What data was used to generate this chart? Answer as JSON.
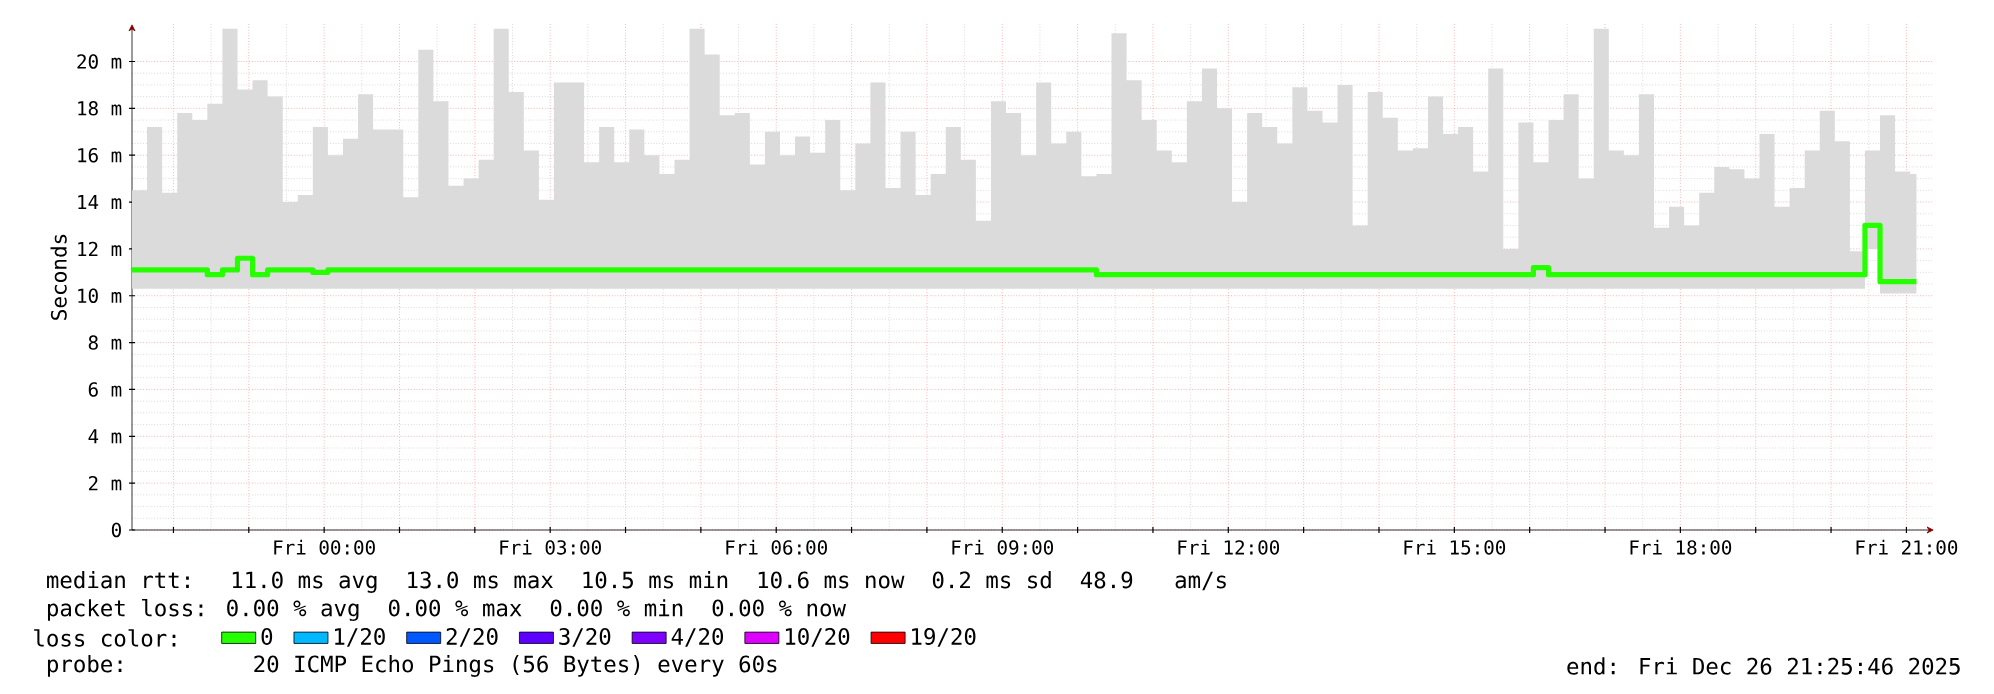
{
  "chart_data": {
    "type": "step",
    "ylabel": "Seconds",
    "x": [
      "2025-12-25T21:27",
      "2025-12-25T21:39",
      "2025-12-25T21:51",
      "2025-12-25T22:03",
      "2025-12-25T22:15",
      "2025-12-25T22:27",
      "2025-12-25T22:39",
      "2025-12-25T22:51",
      "2025-12-25T23:03",
      "2025-12-25T23:15",
      "2025-12-25T23:27",
      "2025-12-25T23:39",
      "2025-12-25T23:51",
      "2025-12-26T00:03",
      "2025-12-26T00:15",
      "2025-12-26T00:27",
      "2025-12-26T00:39",
      "2025-12-26T00:51",
      "2025-12-26T01:03",
      "2025-12-26T01:15",
      "2025-12-26T01:27",
      "2025-12-26T01:39",
      "2025-12-26T01:51",
      "2025-12-26T02:03",
      "2025-12-26T02:15",
      "2025-12-26T02:27",
      "2025-12-26T02:39",
      "2025-12-26T02:51",
      "2025-12-26T03:03",
      "2025-12-26T03:15",
      "2025-12-26T03:27",
      "2025-12-26T03:39",
      "2025-12-26T03:51",
      "2025-12-26T04:03",
      "2025-12-26T04:15",
      "2025-12-26T04:27",
      "2025-12-26T04:39",
      "2025-12-26T04:51",
      "2025-12-26T05:03",
      "2025-12-26T05:15",
      "2025-12-26T05:27",
      "2025-12-26T05:39",
      "2025-12-26T05:51",
      "2025-12-26T06:03",
      "2025-12-26T06:15",
      "2025-12-26T06:27",
      "2025-12-26T06:39",
      "2025-12-26T06:51",
      "2025-12-26T07:03",
      "2025-12-26T07:15",
      "2025-12-26T07:27",
      "2025-12-26T07:39",
      "2025-12-26T07:51",
      "2025-12-26T08:03",
      "2025-12-26T08:15",
      "2025-12-26T08:27",
      "2025-12-26T08:39",
      "2025-12-26T08:51",
      "2025-12-26T09:03",
      "2025-12-26T09:15",
      "2025-12-26T09:27",
      "2025-12-26T09:39",
      "2025-12-26T09:51",
      "2025-12-26T10:03",
      "2025-12-26T10:15",
      "2025-12-26T10:27",
      "2025-12-26T10:39",
      "2025-12-26T10:51",
      "2025-12-26T11:03",
      "2025-12-26T11:15",
      "2025-12-26T11:27",
      "2025-12-26T11:39",
      "2025-12-26T11:51",
      "2025-12-26T12:03",
      "2025-12-26T12:15",
      "2025-12-26T12:27",
      "2025-12-26T12:39",
      "2025-12-26T12:51",
      "2025-12-26T13:03",
      "2025-12-26T13:15",
      "2025-12-26T13:27",
      "2025-12-26T13:39",
      "2025-12-26T13:51",
      "2025-12-26T14:03",
      "2025-12-26T14:15",
      "2025-12-26T14:27",
      "2025-12-26T14:39",
      "2025-12-26T14:51",
      "2025-12-26T15:03",
      "2025-12-26T15:15",
      "2025-12-26T15:27",
      "2025-12-26T15:39",
      "2025-12-26T15:51",
      "2025-12-26T16:03",
      "2025-12-26T16:15",
      "2025-12-26T16:27",
      "2025-12-26T16:39",
      "2025-12-26T16:51",
      "2025-12-26T17:03",
      "2025-12-26T17:15",
      "2025-12-26T17:27",
      "2025-12-26T17:39",
      "2025-12-26T17:51",
      "2025-12-26T18:03",
      "2025-12-26T18:15",
      "2025-12-26T18:27",
      "2025-12-26T18:39",
      "2025-12-26T18:51",
      "2025-12-26T19:03",
      "2025-12-26T19:15",
      "2025-12-26T19:27",
      "2025-12-26T19:39",
      "2025-12-26T19:51",
      "2025-12-26T20:03",
      "2025-12-26T20:15",
      "2025-12-26T20:27",
      "2025-12-26T20:39",
      "2025-12-26T20:51",
      "2025-12-26T21:03",
      "2025-12-26T21:08"
    ],
    "series": [
      {
        "name": "0",
        "color": "#26ff00",
        "values": [
          11.1,
          11.1,
          11.1,
          11.1,
          11.1,
          10.9,
          11.1,
          11.6,
          10.9,
          11.1,
          11.1,
          11.1,
          11.0,
          11.1,
          11.1,
          11.1,
          11.1,
          11.1,
          11.1,
          11.1,
          11.1,
          11.1,
          11.1,
          11.1,
          11.1,
          11.1,
          11.1,
          11.1,
          11.1,
          11.1,
          11.1,
          11.1,
          11.1,
          11.1,
          11.1,
          11.1,
          11.1,
          11.1,
          11.1,
          11.1,
          11.1,
          11.1,
          11.1,
          11.1,
          11.1,
          11.1,
          11.1,
          11.1,
          11.1,
          11.1,
          11.1,
          11.1,
          11.1,
          11.1,
          11.1,
          11.1,
          11.1,
          11.1,
          11.1,
          11.1,
          11.1,
          11.1,
          11.1,
          11.1,
          10.9,
          10.9,
          10.9,
          10.9,
          10.9,
          10.9,
          10.9,
          10.9,
          10.9,
          10.9,
          10.9,
          10.9,
          10.9,
          10.9,
          10.9,
          10.9,
          10.9,
          10.9,
          10.9,
          10.9,
          10.9,
          10.9,
          10.9,
          10.9,
          10.9,
          10.9,
          10.9,
          10.9,
          10.9,
          11.2,
          10.9,
          10.9,
          10.9,
          10.9,
          10.9,
          10.9,
          10.9,
          10.9,
          10.9,
          10.9,
          10.9,
          10.9,
          10.9,
          10.9,
          10.9,
          10.9,
          10.9,
          10.9,
          10.9,
          10.9,
          10.9,
          13.0,
          10.6,
          10.6,
          10.6,
          10.6
        ],
        "lower": [
          10.3,
          10.3,
          10.3,
          10.3,
          10.3,
          10.3,
          10.3,
          10.3,
          10.3,
          10.3,
          10.3,
          10.3,
          10.3,
          10.3,
          10.3,
          10.3,
          10.3,
          10.3,
          10.3,
          10.3,
          10.3,
          10.3,
          10.3,
          10.3,
          10.3,
          10.3,
          10.3,
          10.3,
          10.3,
          10.3,
          10.3,
          10.3,
          10.3,
          10.3,
          10.3,
          10.3,
          10.3,
          10.3,
          10.3,
          10.3,
          10.3,
          10.3,
          10.3,
          10.3,
          10.3,
          10.3,
          10.3,
          10.3,
          10.3,
          10.3,
          10.3,
          10.3,
          10.3,
          10.3,
          10.3,
          10.3,
          10.3,
          10.3,
          10.3,
          10.3,
          10.3,
          10.3,
          10.3,
          10.3,
          10.3,
          10.3,
          10.3,
          10.3,
          10.3,
          10.3,
          10.3,
          10.3,
          10.3,
          10.3,
          10.3,
          10.3,
          10.3,
          10.3,
          10.3,
          10.3,
          10.3,
          10.3,
          10.3,
          10.3,
          10.3,
          10.3,
          10.3,
          10.3,
          10.3,
          10.3,
          10.3,
          10.3,
          10.3,
          10.3,
          10.3,
          10.3,
          10.3,
          10.3,
          10.3,
          10.3,
          10.3,
          10.3,
          10.3,
          10.3,
          10.3,
          10.3,
          10.3,
          10.3,
          10.3,
          10.3,
          10.3,
          10.3,
          10.3,
          10.3,
          10.3,
          12.0,
          10.1,
          10.1,
          10.1,
          10.1
        ],
        "upper": [
          14.5,
          17.2,
          14.4,
          17.8,
          17.5,
          18.2,
          21.4,
          18.8,
          19.2,
          18.5,
          14.0,
          14.3,
          17.2,
          16.0,
          16.7,
          18.6,
          17.1,
          17.1,
          14.2,
          20.5,
          18.3,
          14.7,
          15.0,
          15.8,
          21.4,
          18.7,
          16.2,
          14.1,
          19.1,
          19.1,
          15.7,
          17.2,
          15.7,
          17.1,
          16.0,
          15.2,
          15.8,
          21.4,
          20.3,
          17.7,
          17.8,
          15.6,
          17.0,
          16.0,
          16.8,
          16.1,
          17.5,
          14.5,
          16.5,
          19.1,
          14.6,
          17.0,
          14.3,
          15.2,
          17.2,
          15.8,
          13.2,
          18.3,
          17.8,
          16.0,
          19.1,
          16.5,
          17.0,
          15.1,
          15.2,
          21.2,
          19.2,
          17.5,
          16.2,
          15.7,
          18.3,
          19.7,
          18.0,
          14.0,
          17.8,
          17.2,
          16.5,
          18.9,
          17.9,
          17.4,
          19.0,
          13.0,
          18.7,
          17.6,
          16.2,
          16.3,
          18.5,
          16.9,
          17.2,
          15.3,
          19.7,
          12.0,
          17.4,
          15.7,
          17.5,
          18.6,
          15.0,
          21.4,
          16.2,
          16.0,
          18.6,
          12.9,
          13.8,
          13.0,
          14.4,
          15.5,
          15.4,
          15.0,
          16.9,
          13.8,
          14.6,
          16.2,
          17.9,
          16.6,
          11.9,
          16.2,
          17.7,
          15.3,
          15.2,
          15.2
        ]
      },
      {
        "name": "1/20",
        "color": "#00b8ff",
        "values": [
          null,
          null,
          null,
          null,
          null,
          null,
          null,
          null,
          null,
          null,
          null,
          null,
          null,
          null,
          null,
          null,
          null,
          null,
          null,
          null,
          null,
          null,
          null,
          null,
          null,
          null,
          null,
          null,
          null,
          null,
          null,
          null,
          null,
          null,
          null,
          null,
          null,
          null,
          null,
          null,
          null,
          null,
          null,
          null,
          null,
          null,
          null,
          null,
          null,
          null,
          null,
          null,
          null,
          null,
          null,
          null,
          null,
          null,
          null,
          null,
          null,
          null,
          null,
          null,
          null,
          null,
          null,
          null,
          null,
          null,
          null,
          null,
          null,
          null,
          null,
          null,
          null,
          null,
          null,
          null,
          null,
          null,
          null,
          null,
          null,
          null,
          null,
          null,
          null,
          null,
          null,
          null,
          null,
          null,
          null,
          null,
          null,
          null,
          null,
          null,
          null,
          null,
          null,
          null,
          null,
          null,
          null,
          null,
          null,
          null,
          null,
          null,
          null,
          null,
          null,
          null,
          null,
          null,
          null,
          null
        ]
      },
      {
        "name": "2/20",
        "color": "#0059ff",
        "values": [
          null,
          null,
          null,
          null,
          null,
          null,
          null,
          null,
          null,
          null,
          null,
          null,
          null,
          null,
          null,
          null,
          null,
          null,
          null,
          null,
          null,
          null,
          null,
          null,
          null,
          null,
          null,
          null,
          null,
          null,
          null,
          null,
          null,
          null,
          null,
          null,
          null,
          null,
          null,
          null,
          null,
          null,
          null,
          null,
          null,
          null,
          null,
          null,
          null,
          null,
          null,
          null,
          null,
          null,
          null,
          null,
          null,
          null,
          null,
          null,
          null,
          null,
          null,
          null,
          null,
          null,
          null,
          null,
          null,
          null,
          null,
          null,
          null,
          null,
          null,
          null,
          null,
          null,
          null,
          null,
          null,
          null,
          null,
          null,
          null,
          null,
          null,
          null,
          null,
          null,
          null,
          null,
          null,
          null,
          null,
          null,
          null,
          null,
          null,
          null,
          null,
          null,
          null,
          null,
          null,
          null,
          null,
          null,
          null,
          null,
          null,
          null,
          null,
          null,
          null,
          null,
          null,
          null,
          null,
          null
        ]
      },
      {
        "name": "3/20",
        "color": "#5e00ff",
        "values": [
          null,
          null,
          null,
          null,
          null,
          null,
          null,
          null,
          null,
          null,
          null,
          null,
          null,
          null,
          null,
          null,
          null,
          null,
          null,
          null,
          null,
          null,
          null,
          null,
          null,
          null,
          null,
          null,
          null,
          null,
          null,
          null,
          null,
          null,
          null,
          null,
          null,
          null,
          null,
          null,
          null,
          null,
          null,
          null,
          null,
          null,
          null,
          null,
          null,
          null,
          null,
          null,
          null,
          null,
          null,
          null,
          null,
          null,
          null,
          null,
          null,
          null,
          null,
          null,
          null,
          null,
          null,
          null,
          null,
          null,
          null,
          null,
          null,
          null,
          null,
          null,
          null,
          null,
          null,
          null,
          null,
          null,
          null,
          null,
          null,
          null,
          null,
          null,
          null,
          null,
          null,
          null,
          null,
          null,
          null,
          null,
          null,
          null,
          null,
          null,
          null,
          null,
          null,
          null,
          null,
          null,
          null,
          null,
          null,
          null,
          null,
          null,
          null,
          null,
          null,
          null,
          null,
          null,
          null,
          null
        ]
      },
      {
        "name": "4/20",
        "color": "#7e00ff",
        "values": [
          null,
          null,
          null,
          null,
          null,
          null,
          null,
          null,
          null,
          null,
          null,
          null,
          null,
          null,
          null,
          null,
          null,
          null,
          null,
          null,
          null,
          null,
          null,
          null,
          null,
          null,
          null,
          null,
          null,
          null,
          null,
          null,
          null,
          null,
          null,
          null,
          null,
          null,
          null,
          null,
          null,
          null,
          null,
          null,
          null,
          null,
          null,
          null,
          null,
          null,
          null,
          null,
          null,
          null,
          null,
          null,
          null,
          null,
          null,
          null,
          null,
          null,
          null,
          null,
          null,
          null,
          null,
          null,
          null,
          null,
          null,
          null,
          null,
          null,
          null,
          null,
          null,
          null,
          null,
          null,
          null,
          null,
          null,
          null,
          null,
          null,
          null,
          null,
          null,
          null,
          null,
          null,
          null,
          null,
          null,
          null,
          null,
          null,
          null,
          null,
          null,
          null,
          null,
          null,
          null,
          null,
          null,
          null,
          null,
          null,
          null,
          null,
          null,
          null,
          null,
          null,
          null,
          null,
          null,
          null
        ]
      },
      {
        "name": "10/20",
        "color": "#dd00ff",
        "values": [
          null,
          null,
          null,
          null,
          null,
          null,
          null,
          null,
          null,
          null,
          null,
          null,
          null,
          null,
          null,
          null,
          null,
          null,
          null,
          null,
          null,
          null,
          null,
          null,
          null,
          null,
          null,
          null,
          null,
          null,
          null,
          null,
          null,
          null,
          null,
          null,
          null,
          null,
          null,
          null,
          null,
          null,
          null,
          null,
          null,
          null,
          null,
          null,
          null,
          null,
          null,
          null,
          null,
          null,
          null,
          null,
          null,
          null,
          null,
          null,
          null,
          null,
          null,
          null,
          null,
          null,
          null,
          null,
          null,
          null,
          null,
          null,
          null,
          null,
          null,
          null,
          null,
          null,
          null,
          null,
          null,
          null,
          null,
          null,
          null,
          null,
          null,
          null,
          null,
          null,
          null,
          null,
          null,
          null,
          null,
          null,
          null,
          null,
          null,
          null,
          null,
          null,
          null,
          null,
          null,
          null,
          null,
          null,
          null,
          null,
          null,
          null,
          null,
          null,
          null,
          null,
          null,
          null,
          null,
          null
        ]
      },
      {
        "name": "19/20",
        "color": "#ff0000",
        "values": [
          null,
          null,
          null,
          null,
          null,
          null,
          null,
          null,
          null,
          null,
          null,
          null,
          null,
          null,
          null,
          null,
          null,
          null,
          null,
          null,
          null,
          null,
          null,
          null,
          null,
          null,
          null,
          null,
          null,
          null,
          null,
          null,
          null,
          null,
          null,
          null,
          null,
          null,
          null,
          null,
          null,
          null,
          null,
          null,
          null,
          null,
          null,
          null,
          null,
          null,
          null,
          null,
          null,
          null,
          null,
          null,
          null,
          null,
          null,
          null,
          null,
          null,
          null,
          null,
          null,
          null,
          null,
          null,
          null,
          null,
          null,
          null,
          null,
          null,
          null,
          null,
          null,
          null,
          null,
          null,
          null,
          null,
          null,
          null,
          null,
          null,
          null,
          null,
          null,
          null,
          null,
          null,
          null,
          null,
          null,
          null,
          null,
          null,
          null,
          null,
          null,
          null,
          null,
          null,
          null,
          null,
          null,
          null,
          null,
          null,
          null,
          null,
          null,
          null,
          null,
          null,
          null,
          null,
          null,
          null
        ]
      }
    ],
    "legend": "bottom",
    "legend_title": "loss color:",
    "xlim": [
      "2025-12-25T21:27",
      "2025-12-26T21:22"
    ],
    "ylim": [
      0,
      21.6
    ],
    "xticks": [
      {
        "value": "2025-12-25T22:00",
        "label": null
      },
      {
        "value": "2025-12-25T23:00",
        "label": null
      },
      {
        "value": "2025-12-26T00:00",
        "label": "Fri 00:00"
      },
      {
        "value": "2025-12-26T01:00",
        "label": null
      },
      {
        "value": "2025-12-26T02:00",
        "label": null
      },
      {
        "value": "2025-12-26T03:00",
        "label": "Fri 03:00"
      },
      {
        "value": "2025-12-26T04:00",
        "label": null
      },
      {
        "value": "2025-12-26T05:00",
        "label": null
      },
      {
        "value": "2025-12-26T06:00",
        "label": "Fri 06:00"
      },
      {
        "value": "2025-12-26T07:00",
        "label": null
      },
      {
        "value": "2025-12-26T08:00",
        "label": null
      },
      {
        "value": "2025-12-26T09:00",
        "label": "Fri 09:00"
      },
      {
        "value": "2025-12-26T10:00",
        "label": null
      },
      {
        "value": "2025-12-26T11:00",
        "label": null
      },
      {
        "value": "2025-12-26T12:00",
        "label": "Fri 12:00"
      },
      {
        "value": "2025-12-26T13:00",
        "label": null
      },
      {
        "value": "2025-12-26T14:00",
        "label": null
      },
      {
        "value": "2025-12-26T15:00",
        "label": "Fri 15:00"
      },
      {
        "value": "2025-12-26T16:00",
        "label": null
      },
      {
        "value": "2025-12-26T17:00",
        "label": null
      },
      {
        "value": "2025-12-26T18:00",
        "label": "Fri 18:00"
      },
      {
        "value": "2025-12-26T19:00",
        "label": null
      },
      {
        "value": "2025-12-26T20:00",
        "label": null
      },
      {
        "value": "2025-12-26T21:00",
        "label": "Fri 21:00"
      }
    ],
    "yticks": [
      0,
      {
        "value": 2,
        "label": "2 m"
      },
      {
        "value": 4,
        "label": "4 m"
      },
      {
        "value": 6,
        "label": "6 m"
      },
      {
        "value": 8,
        "label": "8 m"
      },
      {
        "value": 10,
        "label": "10 m"
      },
      {
        "value": 12,
        "label": "12 m"
      },
      {
        "value": 14,
        "label": "14 m"
      },
      {
        "value": 16,
        "label": "16 m"
      },
      {
        "value": 18,
        "label": "18 m"
      },
      {
        "value": 20,
        "label": "20 m"
      }
    ],
    "grid": true,
    "annotations": [
      "median rtt:  11.0 ms avg  13.0 ms max  10.5 ms min  10.6 ms now  0.2 ms sd  48.9   am/s",
      "packet loss: 0.00 % avg  0.00 % max  0.00 % min  0.00 % now",
      "probe:       20 ICMP Echo Pings (56 Bytes) every 60s",
      "end: Fri Dec 26 21:25:46 2025"
    ]
  }
}
